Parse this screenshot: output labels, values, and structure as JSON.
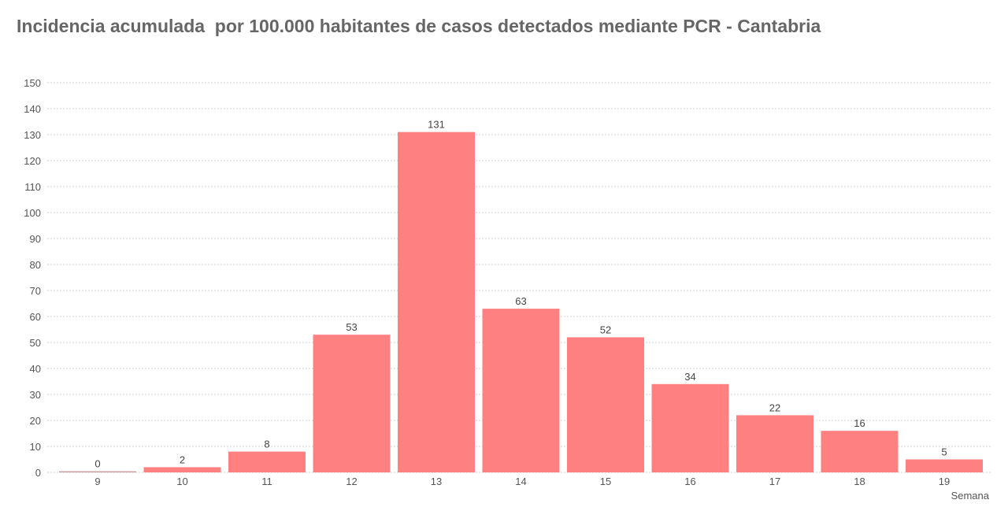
{
  "chart_data": {
    "type": "bar",
    "title": "Incidencia acumulada  por 100.000 habitantes de casos detectados mediante PCR - Cantabria",
    "xlabel": "Semana",
    "ylabel": "",
    "categories": [
      "9",
      "10",
      "11",
      "12",
      "13",
      "14",
      "15",
      "16",
      "17",
      "18",
      "19"
    ],
    "values": [
      0,
      2,
      8,
      53,
      131,
      63,
      52,
      34,
      22,
      16,
      5
    ],
    "ylim": [
      0,
      150
    ],
    "yticks": [
      0,
      10,
      20,
      30,
      40,
      50,
      60,
      70,
      80,
      90,
      100,
      110,
      120,
      130,
      140,
      150
    ],
    "grid": true,
    "bar_color": "#ff8080",
    "zero_bar_color": "#c8a0a0"
  }
}
